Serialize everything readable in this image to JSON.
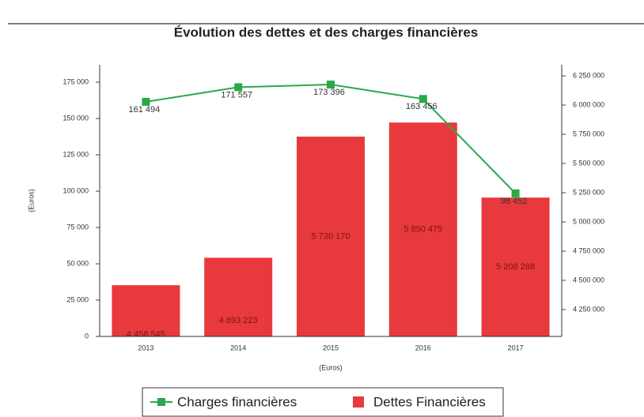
{
  "chart_data": {
    "type": "bar",
    "title": "Évolution des dettes et des charges financières",
    "categories": [
      "2013",
      "2014",
      "2015",
      "2016",
      "2017"
    ],
    "series": [
      {
        "name": "Charges financières",
        "type": "line",
        "color": "#2aa84a",
        "axis": "y",
        "values": [
          161494,
          171557,
          173396,
          163456,
          98452
        ],
        "value_labels": [
          "161 494",
          "171 557",
          "173 396",
          "163 456",
          "98 452"
        ]
      },
      {
        "name": "Dettes Financières",
        "type": "bar",
        "color": "#e8393c",
        "axis": "y2",
        "values": [
          4458545,
          4693223,
          5730170,
          5850475,
          5208288
        ],
        "value_labels": [
          "4 458 545",
          "4 693 223",
          "5 730 170",
          "5 850 475",
          "5 208 288"
        ]
      }
    ],
    "ylabel": "(Euros)",
    "xlabel": "(Euros)",
    "ylim": [
      0,
      187000
    ],
    "yticks": [
      0,
      {
        "value": 25000,
        "label": "25 000"
      },
      {
        "value": 50000,
        "label": "50 000"
      },
      {
        "value": 75000,
        "label": "75 000"
      },
      {
        "value": 100000,
        "label": "100 000"
      },
      {
        "value": 125000,
        "label": "125 000"
      },
      {
        "value": 150000,
        "label": "150 000"
      },
      {
        "value": 175000,
        "label": "175 000"
      }
    ],
    "y2lim": [
      4020000,
      6345000
    ],
    "y2ticks": [
      {
        "value": 4250000,
        "label": "4 250 000"
      },
      {
        "value": 4500000,
        "label": "4 500 000"
      },
      {
        "value": 4750000,
        "label": "4 750 000"
      },
      {
        "value": 5000000,
        "label": "5 000 000"
      },
      {
        "value": 5250000,
        "label": "5 250 000"
      },
      {
        "value": 5500000,
        "label": "5 500 000"
      },
      {
        "value": 5750000,
        "label": "5 750 000"
      },
      {
        "value": 6000000,
        "label": "6 000 000"
      },
      {
        "value": 6250000,
        "label": "6 250 000"
      }
    ],
    "legend": "bottom"
  }
}
